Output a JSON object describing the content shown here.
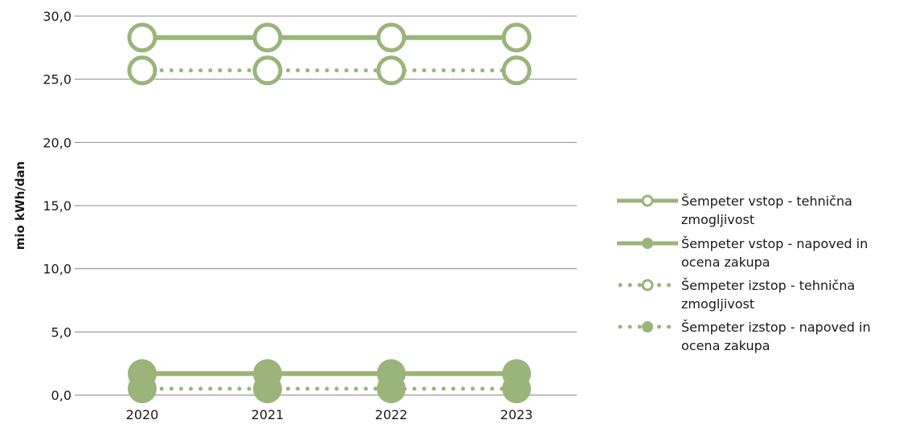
{
  "chart_data": {
    "type": "line",
    "title": "",
    "xlabel": "",
    "ylabel": "mio kWh/dan",
    "categories": [
      "2020",
      "2021",
      "2022",
      "2023"
    ],
    "ylim": [
      0,
      30
    ],
    "yticks": [
      "0,0",
      "5,0",
      "10,0",
      "15,0",
      "20,0",
      "25,0",
      "30,0"
    ],
    "ytick_values": [
      0,
      5,
      10,
      15,
      20,
      25,
      30
    ],
    "grid": true,
    "legend_position": "right",
    "series_color": "#9bb47a",
    "series": [
      {
        "name_lines": [
          "Šempeter vstop - tehnična",
          "zmogljivost"
        ],
        "values": [
          28.3,
          28.3,
          28.3,
          28.3
        ],
        "line": "solid",
        "marker": "open-circle"
      },
      {
        "name_lines": [
          "Šempeter vstop - napoved in",
          "ocena zakupa"
        ],
        "values": [
          1.7,
          1.7,
          1.7,
          1.7
        ],
        "line": "solid",
        "marker": "filled-circle"
      },
      {
        "name_lines": [
          "Šempeter izstop - tehnična",
          "zmogljivost"
        ],
        "values": [
          25.7,
          25.7,
          25.7,
          25.7
        ],
        "line": "dotted",
        "marker": "open-circle"
      },
      {
        "name_lines": [
          "Šempeter izstop - napoved in",
          "ocena zakupa"
        ],
        "values": [
          0.5,
          0.5,
          0.5,
          0.5
        ],
        "line": "dotted",
        "marker": "filled-circle"
      }
    ]
  }
}
